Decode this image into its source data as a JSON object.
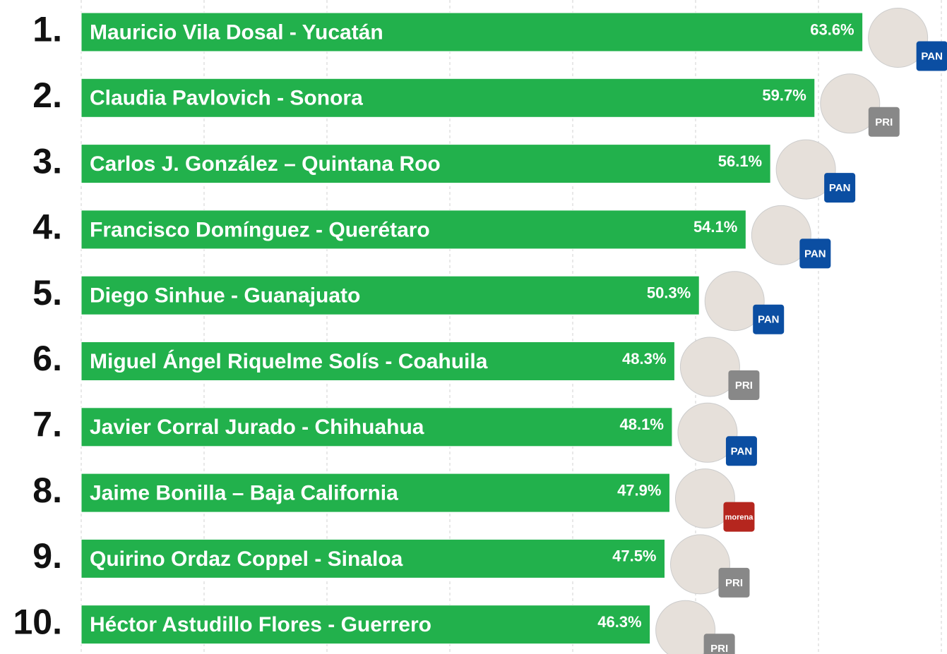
{
  "chart_data": {
    "type": "bar",
    "ranks": [
      "1.",
      "2.",
      "3.",
      "4.",
      "5.",
      "6.",
      "7.",
      "8.",
      "9.",
      "10."
    ],
    "categories": [
      "Mauricio Vila Dosal - Yucatán",
      "Claudia Pavlovich - Sonora",
      "Carlos J. González – Quintana Roo",
      "Francisco Domínguez - Querétaro",
      "Diego Sinhue - Guanajuato",
      "Miguel Ángel Riquelme Solís - Coahuila",
      "Javier Corral Jurado - Chihuahua",
      "Jaime Bonilla – Baja California",
      "Quirino Ordaz Coppel - Sinaloa",
      "Héctor Astudillo Flores - Guerrero"
    ],
    "values": [
      63.6,
      59.7,
      56.1,
      54.1,
      50.3,
      48.3,
      48.1,
      47.9,
      47.5,
      46.3
    ],
    "value_labels": [
      "63.6%",
      "59.7%",
      "56.1%",
      "54.1%",
      "50.3%",
      "48.3%",
      "48.1%",
      "47.9%",
      "47.5%",
      "46.3%"
    ],
    "party": [
      "PAN",
      "PRI",
      "PAN",
      "PAN",
      "PAN",
      "PRI",
      "PAN",
      "morena",
      "PRI",
      "PRI"
    ],
    "color": "#22b14c",
    "xlim": [
      0,
      70
    ],
    "xticks": [
      0,
      10,
      20,
      30,
      40,
      50,
      60,
      70
    ],
    "grid": true
  }
}
